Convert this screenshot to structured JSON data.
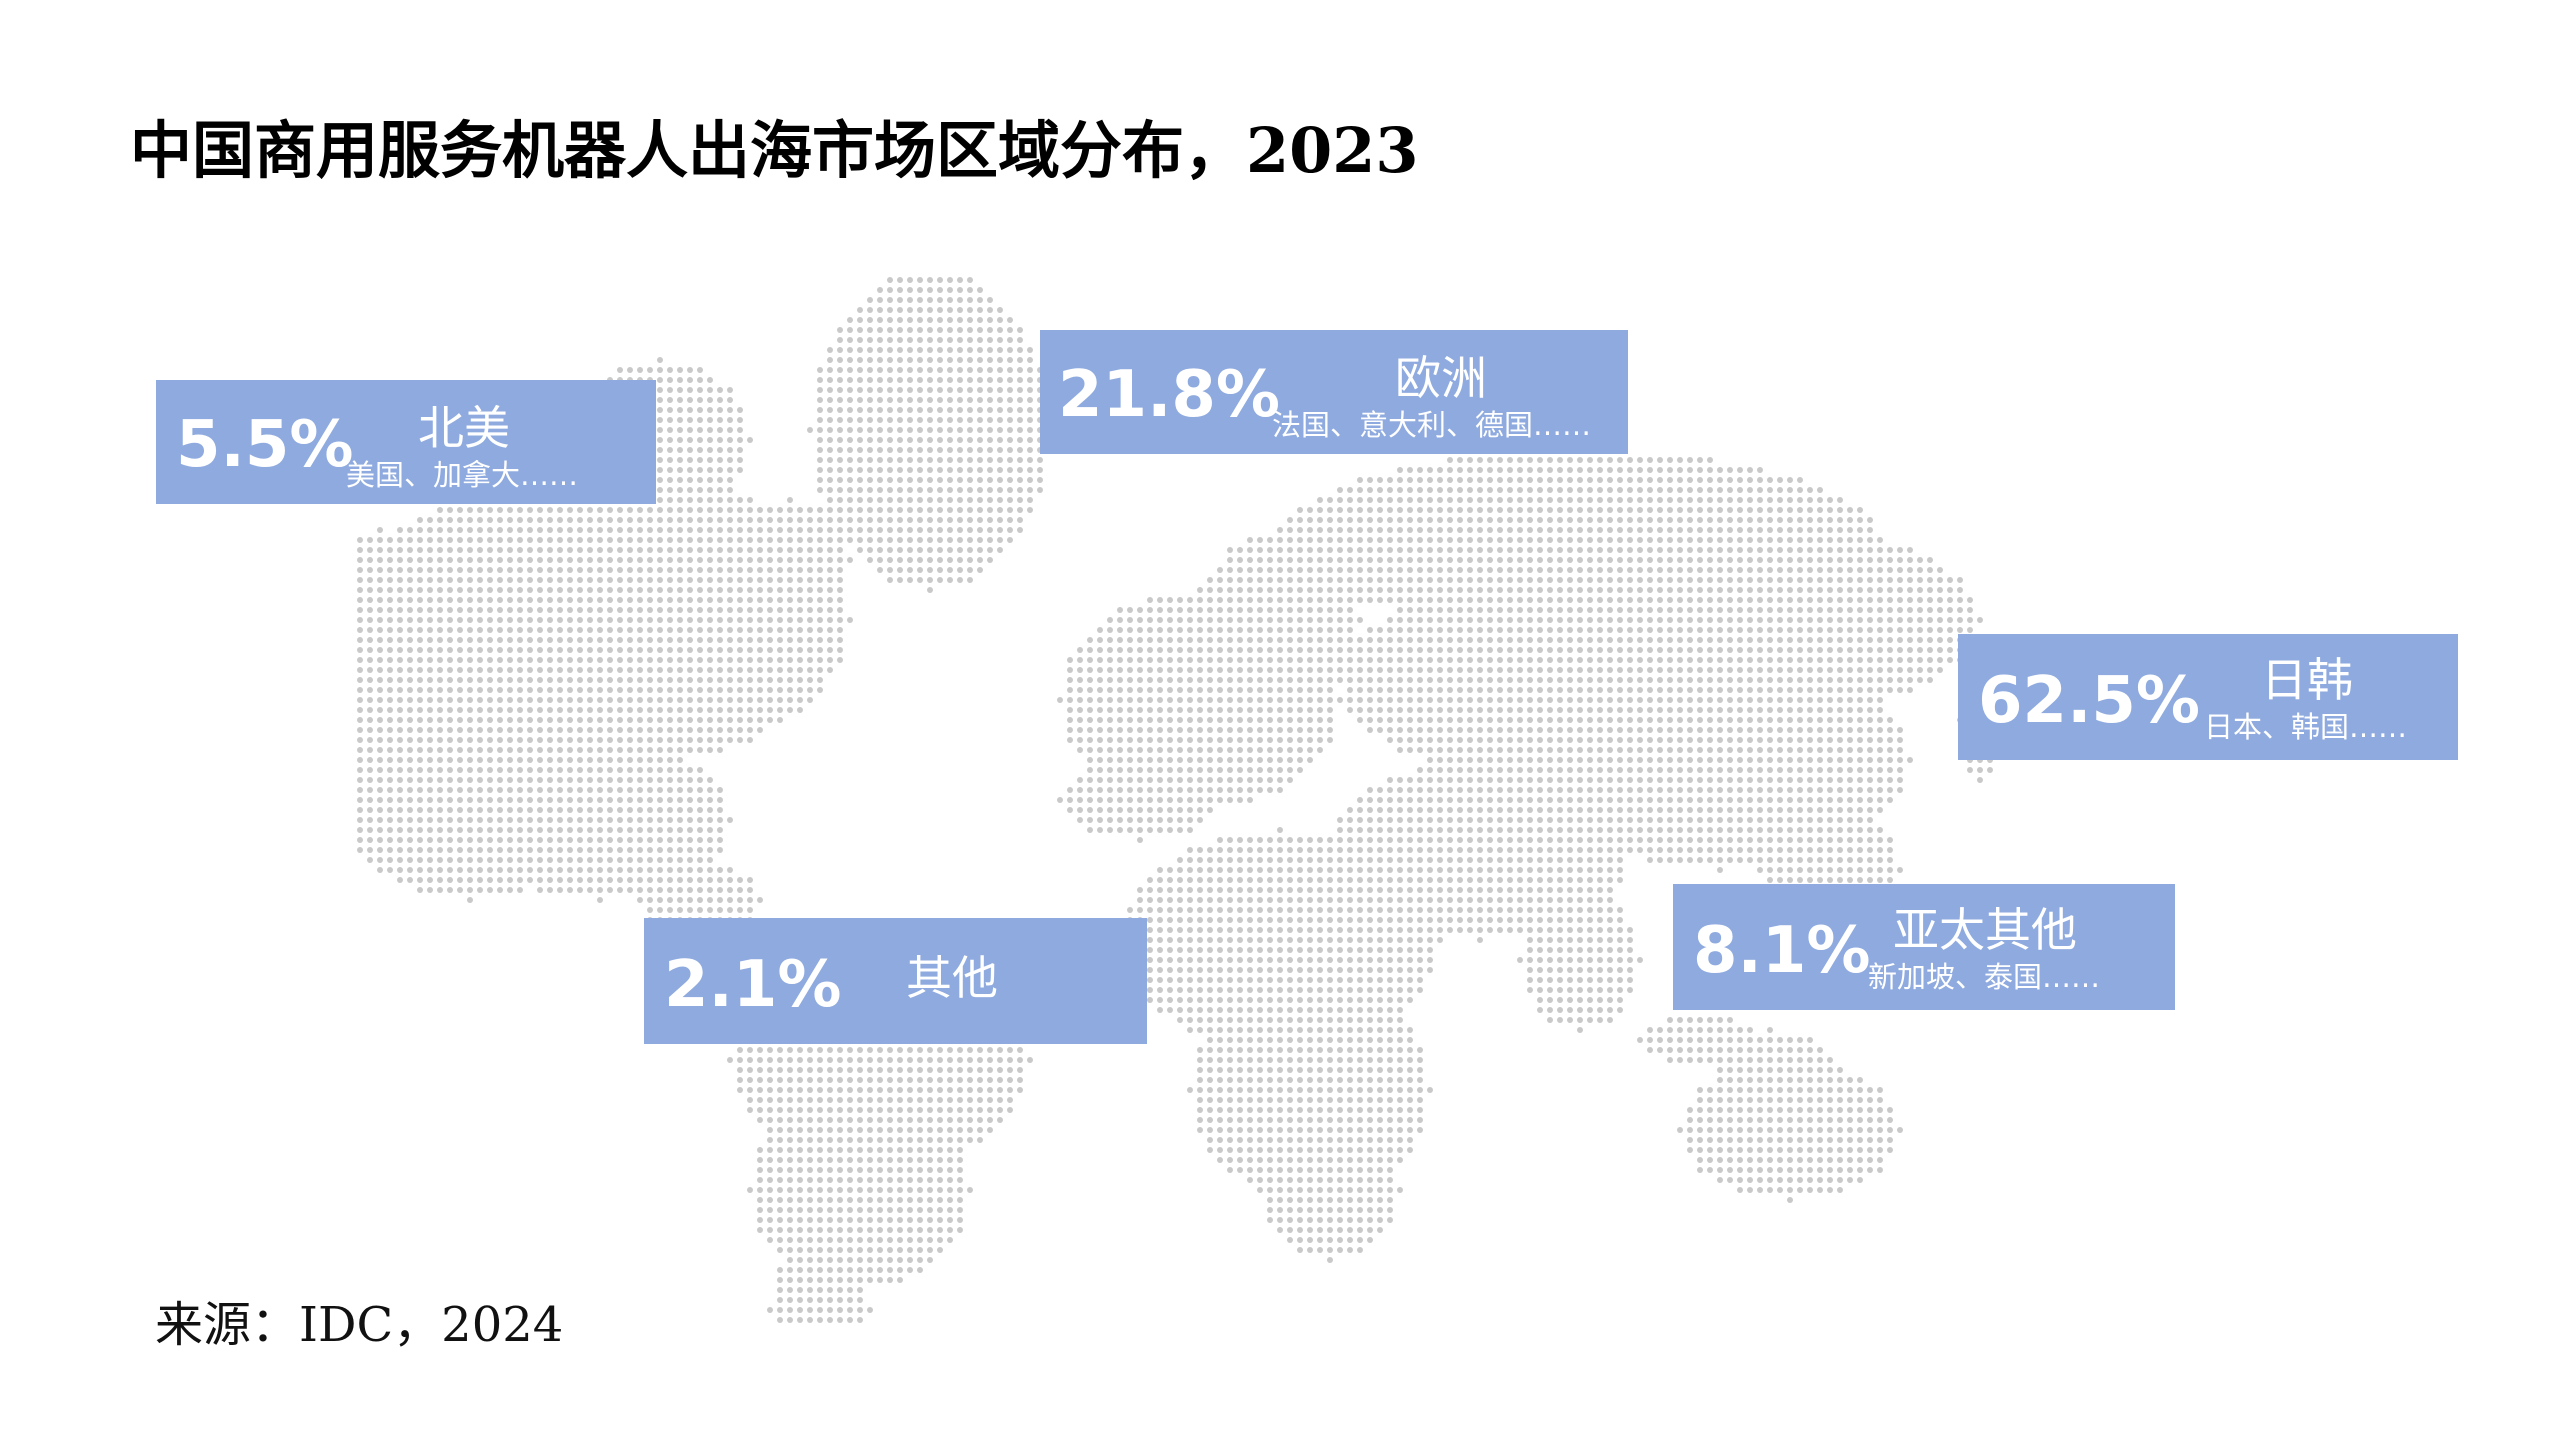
{
  "title": "中国商用服务机器人出海市场区域分布，2023",
  "source": "来源：IDC，2024",
  "colors": {
    "box_fill": "#8eaadf",
    "map_dot": "#c9c9c9",
    "text_on_box": "#ffffff"
  },
  "chart_data": {
    "type": "map",
    "title": "中国商用服务机器人出海市场区域分布，2023",
    "unit": "%",
    "regions": [
      {
        "name": "北美",
        "value": 5.5,
        "label": "5.5%",
        "examples": "美国、加拿大……"
      },
      {
        "name": "欧洲",
        "value": 21.8,
        "label": "21.8%",
        "examples": "法国、意大利、德国……"
      },
      {
        "name": "日韩",
        "value": 62.5,
        "label": "62.5%",
        "examples": "日本、韩国……"
      },
      {
        "name": "亚太其他",
        "value": 8.1,
        "label": "8.1%",
        "examples": "新加坡、泰国……"
      },
      {
        "name": "其他",
        "value": 2.1,
        "label": "2.1%",
        "examples": ""
      }
    ]
  }
}
